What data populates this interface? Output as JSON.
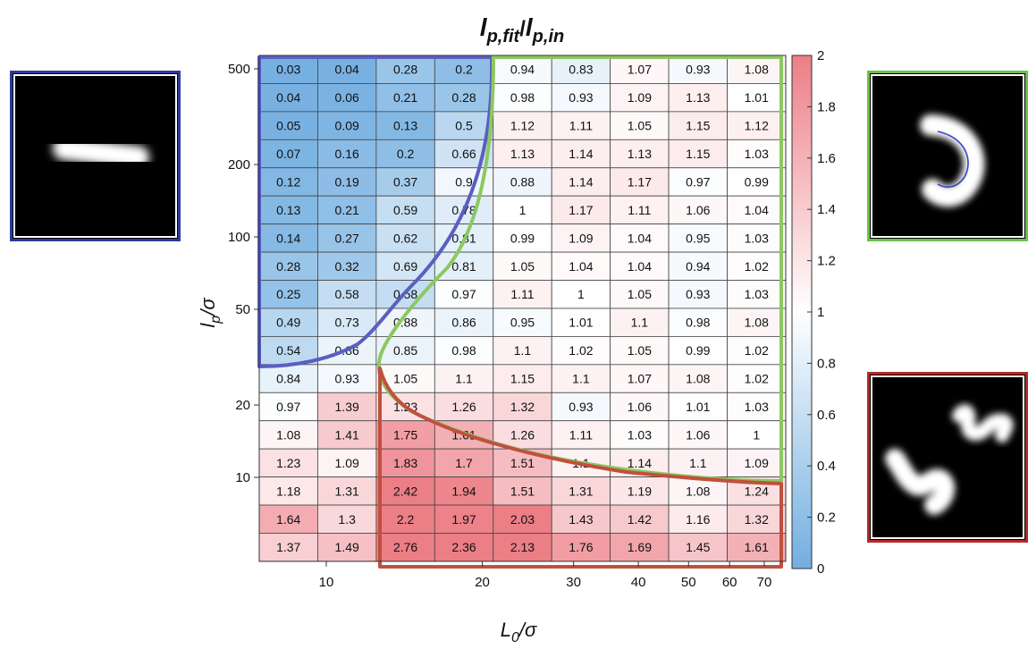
{
  "chart_data": {
    "type": "heatmap",
    "title_parts": {
      "main": "l",
      "sub1": "p,fit",
      "slash": "/",
      "main2": "l",
      "sub2": "p,in"
    },
    "xlabel_parts": {
      "main": "L",
      "sub": "0",
      "rest": "/σ"
    },
    "ylabel_parts": {
      "main": "l",
      "sub": "p",
      "rest": "/σ"
    },
    "x_tick_labels": [
      "10",
      "20",
      "30",
      "40",
      "50",
      "60",
      "70"
    ],
    "x_tick_values": [
      10,
      20,
      30,
      40,
      50,
      60,
      70
    ],
    "y_tick_labels": [
      "10",
      "20",
      "50",
      "100",
      "200",
      "500"
    ],
    "y_tick_values": [
      10,
      20,
      50,
      100,
      200,
      500
    ],
    "colorbar": {
      "min": 0,
      "max": 2,
      "tick_labels": [
        "0",
        "0.2",
        "0.4",
        "0.6",
        "0.8",
        "1",
        "1.2",
        "1.4",
        "1.6",
        "1.8",
        "2"
      ],
      "low_color": "#72aee0",
      "mid_color": "#ffffff",
      "high_color": "#ec7e86"
    },
    "values": [
      [
        "0.03",
        "0.04",
        "0.28",
        "0.2",
        "0.94",
        "0.83",
        "1.07",
        "0.93",
        "1.08"
      ],
      [
        "0.04",
        "0.06",
        "0.21",
        "0.28",
        "0.98",
        "0.93",
        "1.09",
        "1.13",
        "1.01"
      ],
      [
        "0.05",
        "0.09",
        "0.13",
        "0.5",
        "1.12",
        "1.11",
        "1.05",
        "1.15",
        "1.12"
      ],
      [
        "0.07",
        "0.16",
        "0.2",
        "0.66",
        "1.13",
        "1.14",
        "1.13",
        "1.15",
        "1.03"
      ],
      [
        "0.12",
        "0.19",
        "0.37",
        "0.9",
        "0.88",
        "1.14",
        "1.17",
        "0.97",
        "0.99"
      ],
      [
        "0.13",
        "0.21",
        "0.59",
        "0.78",
        "1",
        "1.17",
        "1.11",
        "1.06",
        "1.04"
      ],
      [
        "0.14",
        "0.27",
        "0.62",
        "0.81",
        "0.99",
        "1.09",
        "1.04",
        "0.95",
        "1.03"
      ],
      [
        "0.28",
        "0.32",
        "0.69",
        "0.81",
        "1.05",
        "1.04",
        "1.04",
        "0.94",
        "1.02"
      ],
      [
        "0.25",
        "0.58",
        "0.58",
        "0.97",
        "1.11",
        "1",
        "1.05",
        "0.93",
        "1.03"
      ],
      [
        "0.49",
        "0.73",
        "0.88",
        "0.86",
        "0.95",
        "1.01",
        "1.1",
        "0.98",
        "1.08"
      ],
      [
        "0.54",
        "0.86",
        "0.85",
        "0.98",
        "1.1",
        "1.02",
        "1.05",
        "0.99",
        "1.02"
      ],
      [
        "0.84",
        "0.93",
        "1.05",
        "1.1",
        "1.15",
        "1.1",
        "1.07",
        "1.08",
        "1.02"
      ],
      [
        "0.97",
        "1.39",
        "1.23",
        "1.26",
        "1.32",
        "0.93",
        "1.06",
        "1.01",
        "1.03"
      ],
      [
        "1.08",
        "1.41",
        "1.75",
        "1.61",
        "1.26",
        "1.11",
        "1.03",
        "1.06",
        "1"
      ],
      [
        "1.23",
        "1.09",
        "1.83",
        "1.7",
        "1.51",
        "1.1",
        "1.14",
        "1.1",
        "1.09"
      ],
      [
        "1.18",
        "1.31",
        "2.42",
        "1.94",
        "1.51",
        "1.31",
        "1.19",
        "1.08",
        "1.24"
      ],
      [
        "1.64",
        "1.3",
        "2.2",
        "1.97",
        "2.03",
        "1.43",
        "1.42",
        "1.16",
        "1.32"
      ],
      [
        "1.37",
        "1.49",
        "2.76",
        "2.36",
        "2.13",
        "1.76",
        "1.69",
        "1.45",
        "1.61"
      ]
    ],
    "region_colors": {
      "blue": "#5a5fc0",
      "green": "#8cc860",
      "red": "#c0503e"
    },
    "grid": true
  },
  "insets": {
    "blue_frame_color": "#2b3a9a",
    "green_frame_color": "#6cc04a",
    "red_frame_color": "#b12a2a",
    "inset_line_color": "#3344cc"
  }
}
